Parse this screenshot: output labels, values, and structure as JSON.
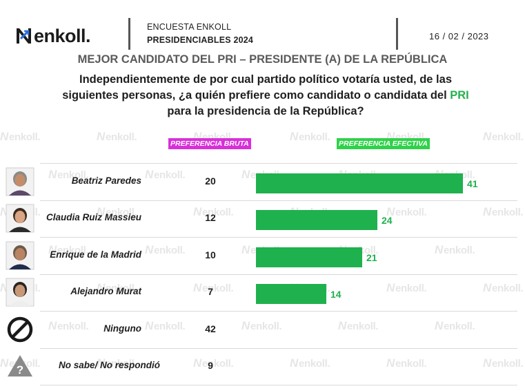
{
  "header": {
    "brand": "enkoll.",
    "survey_name": "ENCUESTA ENKOLL",
    "survey_subtitle": "PRESIDENCIABLES 2024",
    "date": "16 / 02 / 2023"
  },
  "main_title": "MEJOR CANDIDATO DEL PRI – PRESIDENTE (A) DE LA REPÚBLICA",
  "question": {
    "line1": "Independientemente de por cual partido político votaría usted, de las",
    "line2_before": "siguientes personas, ¿a quién prefiere como candidato o candidata del ",
    "line2_highlight": "PRI",
    "line3": "para la presidencia de la República?"
  },
  "watermark_text": "enkoll.",
  "colors": {
    "bar": "#1fb14e",
    "tag_bruta": "#d830d8",
    "tag_efectiva": "#2fd24a",
    "highlight": "#22b14c"
  },
  "chart_data": {
    "type": "bar",
    "orientation": "horizontal",
    "legend": [
      "PREFERENCIA BRUTA",
      "PREFERENCIA EFECTIVA"
    ],
    "categories": [
      "Beatriz Paredes",
      "Claudia Ruiz Massieu",
      "Enrique de la Madrid",
      "Alejandro Murat",
      "Ninguno",
      "No sabe/ No respondió"
    ],
    "series": [
      {
        "name": "PREFERENCIA BRUTA",
        "values": [
          20,
          12,
          10,
          7,
          42,
          9
        ],
        "display": "text"
      },
      {
        "name": "PREFERENCIA EFECTIVA",
        "values": [
          41,
          24,
          21,
          14,
          null,
          null
        ],
        "display": "bar"
      }
    ],
    "xlim": [
      0,
      41
    ],
    "grid": false
  },
  "rows": [
    {
      "label": "Beatriz Paredes",
      "bruta": "20",
      "efectiva": "41",
      "icon": "candidate-photo-icon"
    },
    {
      "label": "Claudia Ruiz Massieu",
      "bruta": "12",
      "efectiva": "24",
      "icon": "candidate-photo-icon"
    },
    {
      "label": "Enrique de la Madrid",
      "bruta": "10",
      "efectiva": "21",
      "icon": "candidate-photo-icon"
    },
    {
      "label": "Alejandro Murat",
      "bruta": "7",
      "efectiva": "14",
      "icon": "candidate-photo-icon"
    },
    {
      "label": "Ninguno",
      "bruta": "42",
      "efectiva": "",
      "icon": "prohibited-icon"
    },
    {
      "label": "No sabe/ No respondió",
      "bruta": "9",
      "efectiva": "",
      "icon": "question-mark-triangle-icon"
    }
  ]
}
